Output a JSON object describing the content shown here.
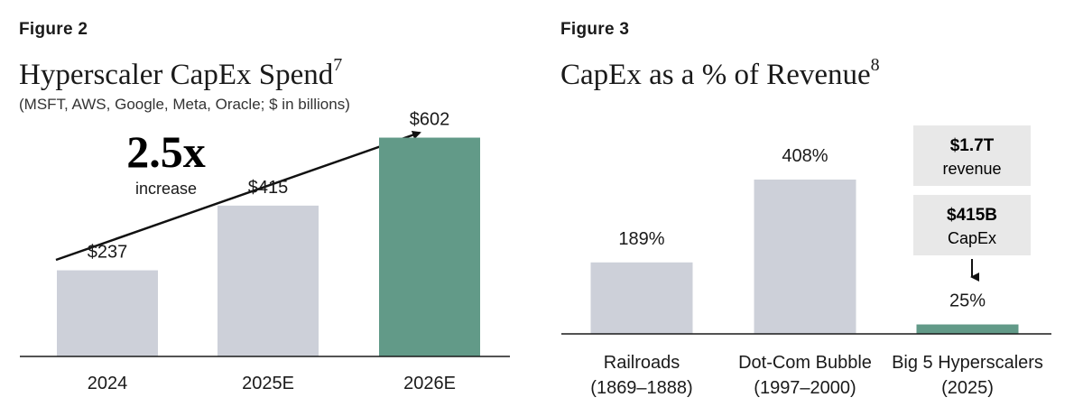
{
  "figure2": {
    "label": "Figure 2",
    "title": "Hyperscaler CapEx Spend",
    "title_note": "7",
    "subtitle": "(MSFT, AWS, Google, Meta, Oracle; $ in billions)",
    "multiplier": "2.5x",
    "multiplier_caption": "increase",
    "colors": {
      "bar": "#cdd0d9",
      "highlight": "#629a88",
      "multiplier": "#a3623f"
    }
  },
  "figure3": {
    "label": "Figure 3",
    "title": "CapEx as a % of Revenue",
    "title_note": "8",
    "callout_revenue": {
      "value": "$1.7T",
      "caption": "revenue"
    },
    "callout_capex": {
      "value": "$415B",
      "caption": "CapEx"
    },
    "colors": {
      "bar": "#cdd0d9",
      "highlight": "#629a88",
      "callout_bg": "#e8e8e8"
    }
  },
  "chart_data": [
    {
      "type": "bar",
      "title": "Hyperscaler CapEx Spend",
      "subtitle": "(MSFT, AWS, Google, Meta, Oracle; $ in billions)",
      "categories": [
        "2024",
        "2025E",
        "2026E"
      ],
      "values": [
        237,
        415,
        602
      ],
      "data_labels": [
        "$237",
        "$415",
        "$602"
      ],
      "highlight_index": 2,
      "ylim": [
        0,
        720
      ],
      "xlabel": "",
      "ylabel": "",
      "annotation": "2.5x increase"
    },
    {
      "type": "bar",
      "title": "CapEx as a % of Revenue",
      "categories": [
        "Railroads (1869–1888)",
        "Dot-Com Bubble (1997–2000)",
        "Big 5 Hyperscalers (2025)"
      ],
      "category_lines": [
        [
          "Railroads",
          "(1869–1888)"
        ],
        [
          "Dot-Com Bubble",
          "(1997–2000)"
        ],
        [
          "Big 5 Hyperscalers",
          "(2025)"
        ]
      ],
      "values": [
        189,
        408,
        25
      ],
      "data_labels": [
        "189%",
        "408%",
        "25%"
      ],
      "highlight_index": 2,
      "ylim": [
        0,
        480
      ],
      "xlabel": "",
      "ylabel": ""
    }
  ]
}
